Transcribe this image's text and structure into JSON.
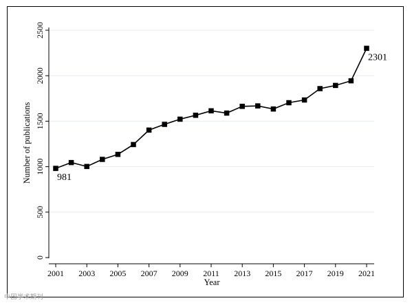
{
  "chart_data": {
    "type": "line",
    "title": "",
    "xlabel": "Year",
    "ylabel": "Number of publications",
    "x": [
      2001,
      2002,
      2003,
      2004,
      2005,
      2006,
      2007,
      2008,
      2009,
      2010,
      2011,
      2012,
      2013,
      2014,
      2015,
      2016,
      2017,
      2018,
      2019,
      2020,
      2021
    ],
    "series": [
      {
        "name": "",
        "values": [
          981,
          1045,
          1002,
          1080,
          1135,
          1243,
          1402,
          1465,
          1522,
          1565,
          1614,
          1589,
          1663,
          1668,
          1634,
          1703,
          1733,
          1858,
          1893,
          1944,
          2301
        ]
      }
    ],
    "xticks": [
      "2001",
      "2003",
      "2005",
      "2007",
      "2009",
      "2011",
      "2013",
      "2015",
      "2017",
      "2019",
      "2021"
    ],
    "yticks": [
      "0",
      "500",
      "1000",
      "1500",
      "2000",
      "2500"
    ],
    "xlim": [
      2001,
      2021
    ],
    "ylim": [
      0,
      2500
    ],
    "grid": true,
    "annotations": [
      {
        "x": 2001,
        "y": 981,
        "text": "981",
        "position": "below-right"
      },
      {
        "x": 2021,
        "y": 2301,
        "text": "2301",
        "position": "below-right"
      }
    ],
    "line_color": "#000000",
    "marker": "square"
  },
  "watermark": "中国学术期刊"
}
